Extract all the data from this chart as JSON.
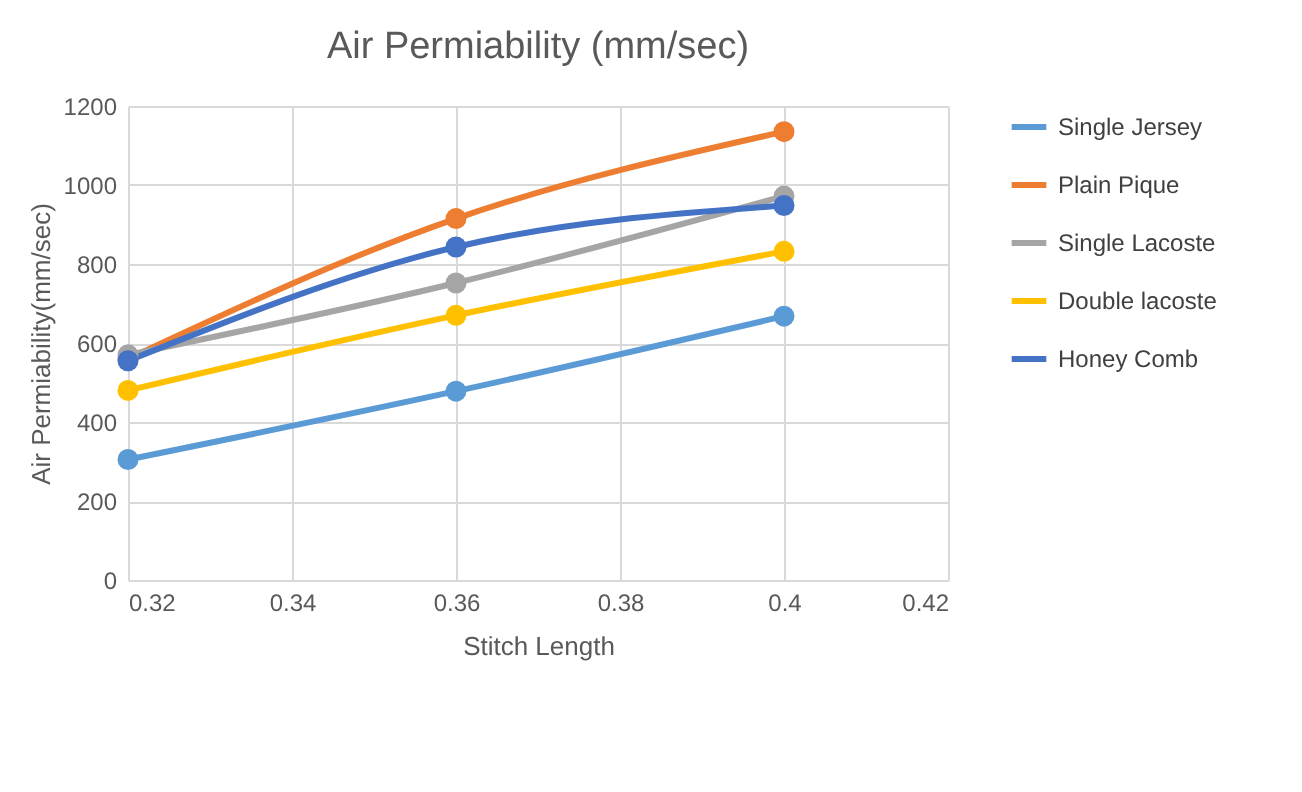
{
  "chart_data": {
    "type": "line",
    "title": "Air Permiability (mm/sec)",
    "xlabel": "Stitch Length",
    "ylabel": "Air Permiability(mm/sec)",
    "x": [
      0.32,
      0.36,
      0.4
    ],
    "series": [
      {
        "name": "Single Jersey",
        "color": "#5b9bd5",
        "values": [
          305,
          478,
          668
        ]
      },
      {
        "name": "Plain Pique",
        "color": "#ed7d31",
        "values": [
          560,
          915,
          1135
        ]
      },
      {
        "name": "Single Lacoste",
        "color": "#a5a5a5",
        "values": [
          570,
          752,
          972
        ]
      },
      {
        "name": "Double lacoste",
        "color": "#ffc000",
        "values": [
          480,
          670,
          832
        ]
      },
      {
        "name": "Honey Comb",
        "color": "#4472c4",
        "values": [
          555,
          843,
          948
        ]
      }
    ],
    "xlim": [
      0.32,
      0.42
    ],
    "xticks": [
      0.32,
      0.34,
      0.36,
      0.38,
      0.4,
      0.42
    ],
    "ylim": [
      0,
      1200
    ],
    "yticks": [
      0,
      200,
      400,
      600,
      800,
      1000,
      1200
    ],
    "grid": true,
    "legend": "right",
    "marker": "circle",
    "line_style": "solid"
  }
}
